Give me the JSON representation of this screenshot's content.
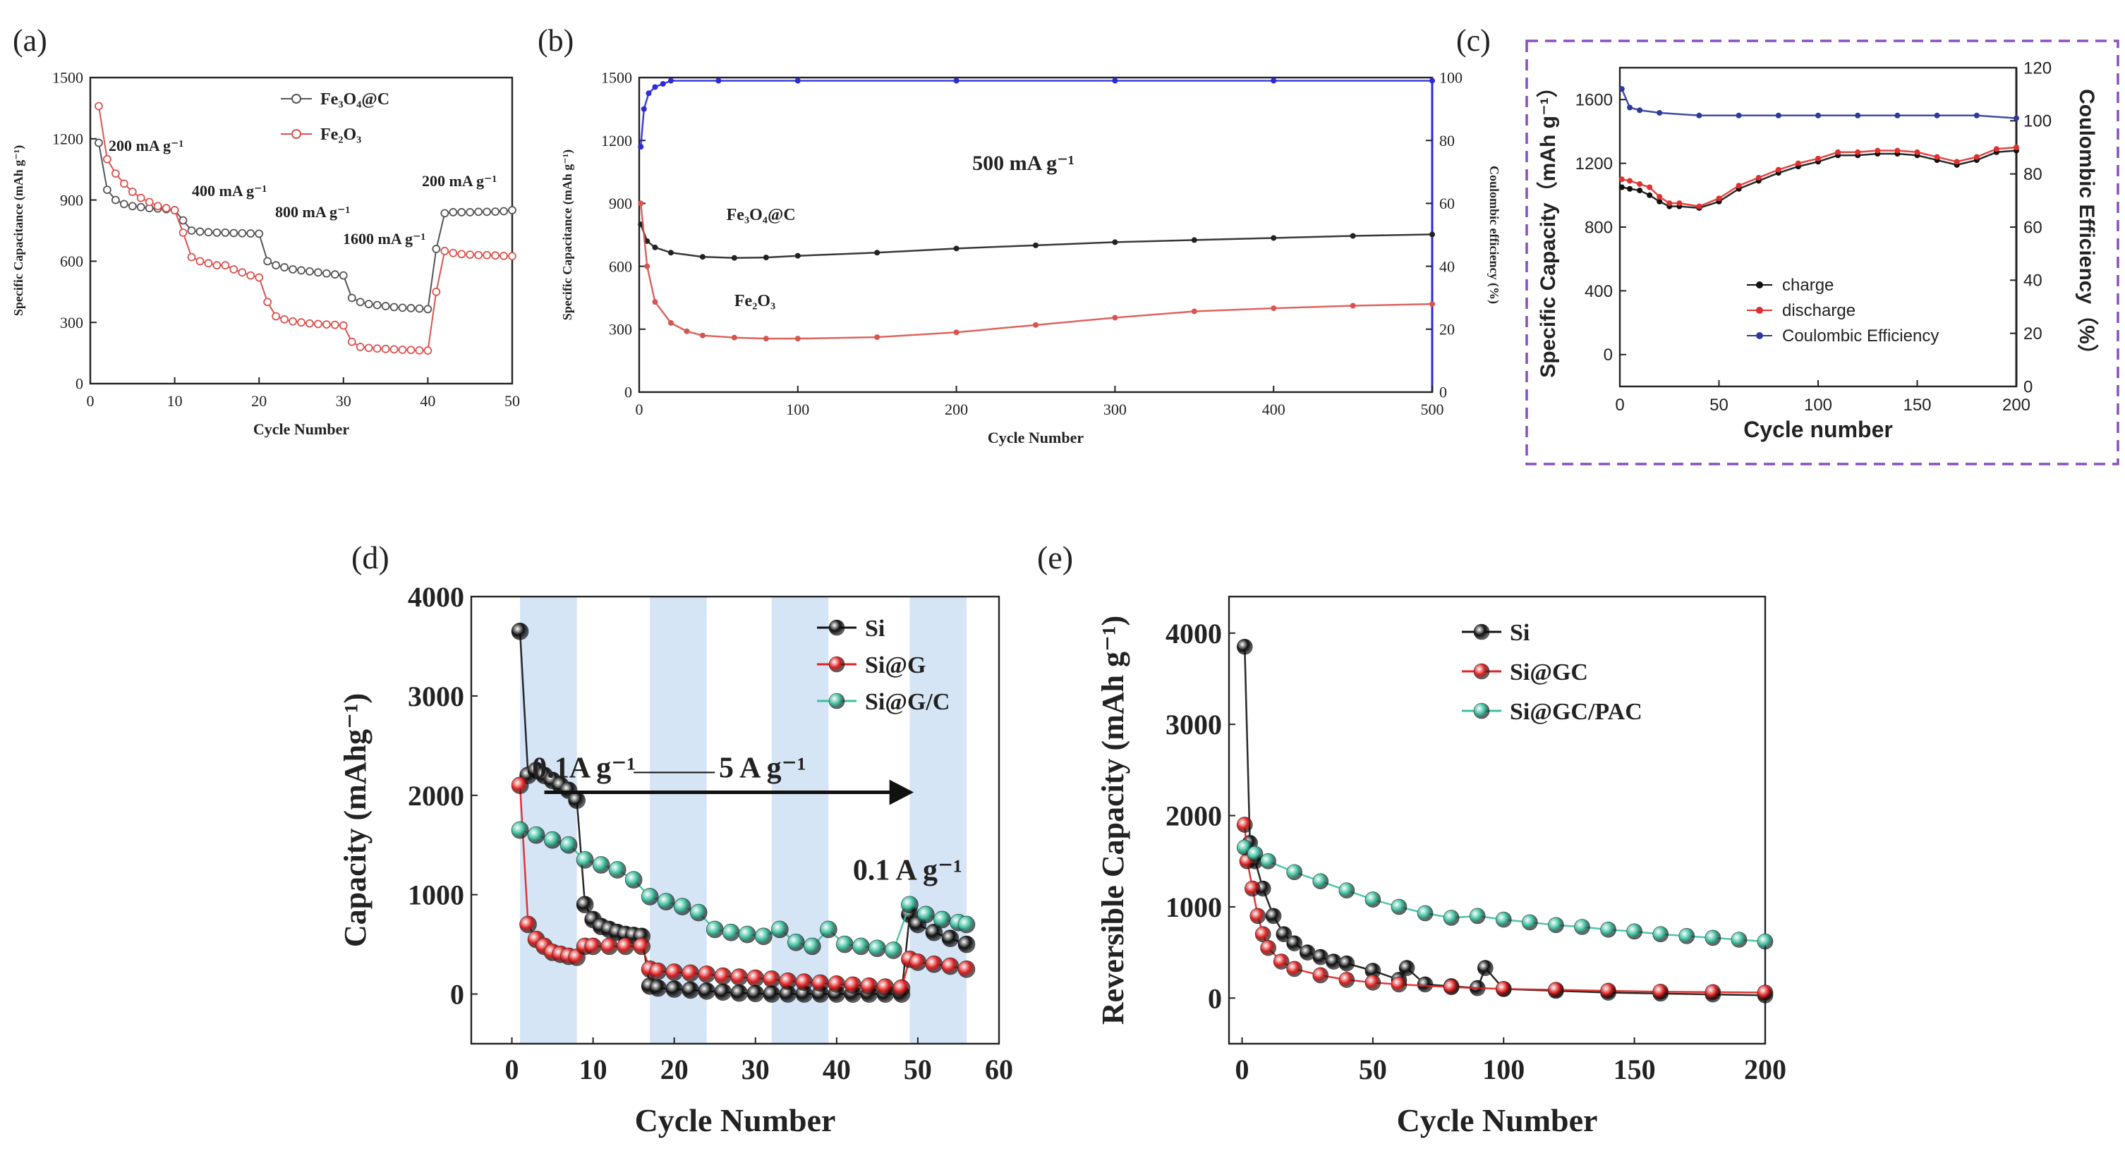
{
  "chart_data": [
    {
      "id": "a",
      "type": "line",
      "panel_label": "(a)",
      "xlabel": "Cycle Number",
      "ylabel": "Specific Capacitance (mAh g⁻¹)",
      "xlim": [
        0,
        50
      ],
      "ylim": [
        0,
        1500
      ],
      "xticks": [
        0,
        10,
        20,
        30,
        40,
        50
      ],
      "yticks": [
        0,
        300,
        600,
        900,
        1200,
        1500
      ],
      "legend": [
        "Fe₃O₄@C",
        "Fe₂O₃"
      ],
      "annotations": [
        "200 mA g⁻¹",
        "400 mA g⁻¹",
        "800 mA g⁻¹",
        "1600 mA g⁻¹",
        "200 mA g⁻¹"
      ],
      "series": [
        {
          "name": "Fe₃O₄@C",
          "color": "#555555",
          "values": [
            1180,
            950,
            900,
            880,
            870,
            865,
            860,
            858,
            855,
            850,
            800,
            750,
            745,
            742,
            740,
            740,
            738,
            737,
            736,
            735,
            600,
            580,
            570,
            560,
            555,
            550,
            545,
            540,
            535,
            530,
            420,
            400,
            390,
            385,
            380,
            375,
            372,
            370,
            368,
            365,
            660,
            835,
            840,
            840,
            840,
            842,
            842,
            843,
            845,
            850
          ]
        },
        {
          "name": "Fe₂O₃",
          "color": "#d9534f",
          "values": [
            1360,
            1100,
            1030,
            980,
            940,
            910,
            890,
            870,
            860,
            850,
            740,
            620,
            600,
            590,
            580,
            580,
            560,
            545,
            530,
            520,
            400,
            330,
            315,
            305,
            300,
            295,
            292,
            290,
            288,
            285,
            205,
            180,
            175,
            172,
            170,
            168,
            166,
            165,
            163,
            162,
            450,
            650,
            640,
            635,
            632,
            630,
            630,
            628,
            626,
            625
          ]
        }
      ]
    },
    {
      "id": "b",
      "type": "scatter",
      "panel_label": "(b)",
      "xlabel": "Cycle Number",
      "ylabel": "Specific Capacitance (mAh g⁻¹)",
      "y2label": "Coulombic efficiency (%)",
      "xlim": [
        0,
        500
      ],
      "ylim": [
        0,
        1500
      ],
      "y2lim": [
        0,
        100
      ],
      "xticks": [
        0,
        100,
        200,
        300,
        400,
        500
      ],
      "yticks": [
        0,
        300,
        600,
        900,
        1200,
        1500
      ],
      "y2ticks": [
        0,
        20,
        40,
        60,
        80,
        100
      ],
      "annotations": [
        "500 mA g⁻¹",
        "Fe₃O₄@C",
        "Fe₂O₃"
      ],
      "series": [
        {
          "name": "Fe₃O₄@C",
          "color": "#222222",
          "x": [
            1,
            5,
            10,
            20,
            40,
            60,
            80,
            100,
            150,
            200,
            250,
            300,
            350,
            400,
            450,
            500
          ],
          "values": [
            800,
            720,
            690,
            665,
            645,
            640,
            642,
            650,
            665,
            685,
            700,
            715,
            725,
            735,
            745,
            752
          ]
        },
        {
          "name": "Fe₂O₃",
          "color": "#d9534f",
          "x": [
            1,
            5,
            10,
            20,
            30,
            40,
            60,
            80,
            100,
            150,
            200,
            250,
            300,
            350,
            400,
            450,
            500
          ],
          "values": [
            900,
            600,
            430,
            330,
            290,
            270,
            260,
            255,
            255,
            262,
            285,
            320,
            355,
            385,
            400,
            412,
            420
          ]
        },
        {
          "name": "Coulombic efficiency",
          "color": "#2b2bd9",
          "axis": "y2",
          "x": [
            1,
            3,
            6,
            10,
            15,
            20,
            50,
            100,
            200,
            300,
            400,
            500
          ],
          "values": [
            78,
            90,
            95,
            97,
            98,
            99,
            99,
            99,
            99,
            99,
            99,
            99
          ]
        }
      ]
    },
    {
      "id": "c",
      "type": "scatter",
      "panel_label": "(c)",
      "xlabel": "Cycle number",
      "ylabel": "Specific Capacity（mAh g⁻¹）",
      "y2label": "Coulombic Efficiency（%）",
      "xlim": [
        0,
        200
      ],
      "ylim": [
        -200,
        1800
      ],
      "y2lim": [
        0,
        120
      ],
      "xticks": [
        0,
        50,
        100,
        150,
        200
      ],
      "yticks": [
        0,
        400,
        800,
        1200,
        1600
      ],
      "y2ticks": [
        0,
        20,
        40,
        60,
        80,
        100,
        120
      ],
      "legend": [
        "charge",
        "discharge",
        "Coulombic Efficiency"
      ],
      "series": [
        {
          "name": "charge",
          "color": "#111111",
          "x": [
            1,
            5,
            10,
            15,
            20,
            25,
            30,
            40,
            50,
            60,
            70,
            80,
            90,
            100,
            110,
            120,
            130,
            140,
            150,
            160,
            170,
            180,
            190,
            200
          ],
          "values": [
            1050,
            1040,
            1030,
            1000,
            960,
            930,
            930,
            920,
            960,
            1040,
            1090,
            1140,
            1180,
            1210,
            1250,
            1250,
            1260,
            1260,
            1250,
            1220,
            1190,
            1220,
            1270,
            1280
          ]
        },
        {
          "name": "discharge",
          "color": "#e03030",
          "x": [
            1,
            5,
            10,
            15,
            20,
            25,
            30,
            40,
            50,
            60,
            70,
            80,
            90,
            100,
            110,
            120,
            130,
            140,
            150,
            160,
            170,
            180,
            190,
            200
          ],
          "values": [
            1100,
            1090,
            1070,
            1050,
            990,
            950,
            950,
            930,
            980,
            1060,
            1110,
            1160,
            1200,
            1230,
            1270,
            1270,
            1280,
            1280,
            1270,
            1240,
            1210,
            1240,
            1290,
            1300
          ]
        },
        {
          "name": "Coulombic Efficiency",
          "color": "#2b3a9b",
          "axis": "y2",
          "x": [
            1,
            5,
            10,
            20,
            40,
            60,
            80,
            100,
            120,
            140,
            160,
            180,
            200
          ],
          "values": [
            112,
            105,
            104,
            103,
            102,
            102,
            102,
            102,
            102,
            102,
            102,
            102,
            101
          ]
        }
      ]
    },
    {
      "id": "d",
      "type": "scatter",
      "panel_label": "(d)",
      "xlabel": "Cycle Number",
      "ylabel": "Capacity (mAhg⁻¹)",
      "xlim": [
        -5,
        60
      ],
      "ylim": [
        -500,
        4000
      ],
      "xticks": [
        0,
        10,
        20,
        30,
        40,
        50,
        60
      ],
      "yticks": [
        0,
        1000,
        2000,
        3000,
        4000
      ],
      "shaded_regions": [
        [
          1,
          8
        ],
        [
          17,
          24
        ],
        [
          32,
          39
        ],
        [
          49,
          56
        ]
      ],
      "legend": [
        "Si",
        "Si@G",
        "Si@G/C"
      ],
      "annotations": [
        "0.1A g⁻¹",
        "5 A g⁻¹",
        "0.1 A g⁻¹"
      ],
      "series": [
        {
          "name": "Si",
          "color": "#111111",
          "x": [
            1,
            2,
            3,
            4,
            5,
            6,
            7,
            8,
            9,
            10,
            11,
            12,
            13,
            14,
            15,
            16,
            17,
            18,
            20,
            22,
            24,
            26,
            28,
            30,
            32,
            34,
            36,
            38,
            40,
            42,
            44,
            46,
            48,
            49,
            50,
            52,
            54,
            56
          ],
          "values": [
            3650,
            2200,
            2250,
            2200,
            2150,
            2100,
            2050,
            1950,
            900,
            750,
            680,
            650,
            620,
            600,
            590,
            580,
            80,
            60,
            50,
            40,
            30,
            20,
            10,
            5,
            0,
            0,
            0,
            0,
            0,
            0,
            0,
            0,
            0,
            800,
            700,
            620,
            560,
            500
          ]
        },
        {
          "name": "Si@G",
          "color": "#e02020",
          "x": [
            1,
            2,
            3,
            4,
            5,
            6,
            7,
            8,
            9,
            10,
            12,
            14,
            16,
            17,
            18,
            20,
            22,
            24,
            26,
            28,
            30,
            32,
            34,
            36,
            38,
            40,
            42,
            44,
            46,
            48,
            49,
            50,
            52,
            54,
            56
          ],
          "values": [
            2100,
            700,
            550,
            480,
            420,
            400,
            380,
            370,
            480,
            480,
            480,
            480,
            480,
            250,
            230,
            220,
            210,
            200,
            180,
            170,
            160,
            150,
            130,
            120,
            110,
            100,
            90,
            80,
            70,
            60,
            350,
            320,
            300,
            280,
            250
          ]
        },
        {
          "name": "Si@G/C",
          "color": "#3dbf9f",
          "x": [
            1,
            3,
            5,
            7,
            9,
            11,
            13,
            15,
            17,
            19,
            21,
            23,
            25,
            27,
            29,
            31,
            33,
            35,
            37,
            39,
            41,
            43,
            45,
            47,
            49,
            51,
            53,
            55,
            56
          ],
          "values": [
            1650,
            1600,
            1550,
            1500,
            1350,
            1300,
            1250,
            1150,
            980,
            930,
            880,
            820,
            650,
            620,
            600,
            580,
            650,
            520,
            480,
            650,
            500,
            480,
            460,
            440,
            900,
            800,
            750,
            720,
            700
          ]
        }
      ]
    },
    {
      "id": "e",
      "type": "scatter",
      "panel_label": "(e)",
      "xlabel": "Cycle Number",
      "ylabel": "Reversible Capacity (mAh g⁻¹)",
      "xlim": [
        -5,
        200
      ],
      "ylim": [
        -500,
        4400
      ],
      "xticks": [
        0,
        50,
        100,
        150,
        200
      ],
      "yticks": [
        0,
        1000,
        2000,
        3000,
        4000
      ],
      "legend": [
        "Si",
        "Si@GC",
        "Si@GC/PAC"
      ],
      "series": [
        {
          "name": "Si",
          "color": "#111111",
          "x": [
            1,
            3,
            5,
            8,
            12,
            16,
            20,
            25,
            30,
            35,
            40,
            50,
            60,
            63,
            70,
            80,
            90,
            93,
            100,
            120,
            140,
            160,
            180,
            200
          ],
          "values": [
            3850,
            1700,
            1500,
            1200,
            900,
            700,
            600,
            500,
            450,
            400,
            380,
            300,
            200,
            330,
            150,
            130,
            110,
            330,
            100,
            80,
            60,
            50,
            40,
            30
          ]
        },
        {
          "name": "Si@GC",
          "color": "#e02020",
          "x": [
            1,
            2,
            4,
            6,
            8,
            10,
            15,
            20,
            30,
            40,
            50,
            60,
            80,
            100,
            120,
            140,
            160,
            180,
            200
          ],
          "values": [
            1900,
            1500,
            1200,
            900,
            700,
            550,
            400,
            320,
            250,
            200,
            170,
            150,
            120,
            100,
            90,
            80,
            70,
            65,
            60
          ]
        },
        {
          "name": "Si@GC/PAC",
          "color": "#3dbf9f",
          "x": [
            1,
            5,
            10,
            20,
            30,
            40,
            50,
            60,
            70,
            80,
            90,
            100,
            110,
            120,
            130,
            140,
            150,
            160,
            170,
            180,
            190,
            200
          ],
          "values": [
            1650,
            1580,
            1500,
            1380,
            1280,
            1180,
            1080,
            1000,
            930,
            880,
            900,
            860,
            830,
            800,
            780,
            750,
            730,
            700,
            680,
            660,
            640,
            620
          ]
        }
      ]
    }
  ]
}
